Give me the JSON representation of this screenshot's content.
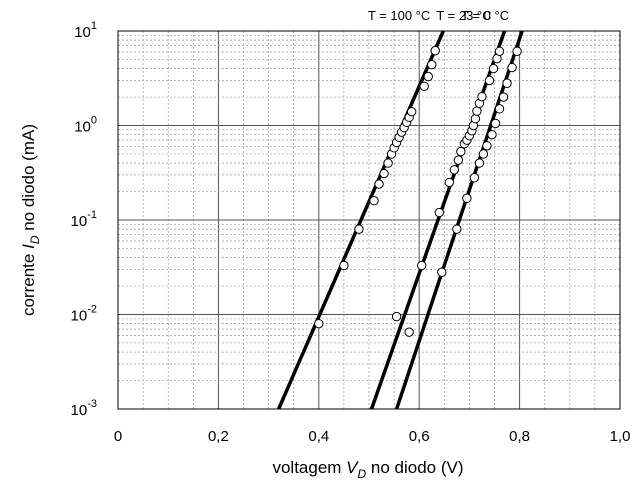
{
  "chart_data": {
    "type": "scatter",
    "xlabel": {
      "prefix": "voltagem ",
      "symbol": "V",
      "subscript": "D",
      "suffix": " no diodo (V)"
    },
    "ylabel": {
      "prefix": "corrente ",
      "symbol": "I",
      "subscript": "D",
      "suffix": "  no diodo (mA)"
    },
    "x_ticks": [
      {
        "value": 0,
        "label": "0"
      },
      {
        "value": 0.2,
        "label": "0,2"
      },
      {
        "value": 0.4,
        "label": "0,4"
      },
      {
        "value": 0.6,
        "label": "0,6"
      },
      {
        "value": 0.8,
        "label": "0,8"
      },
      {
        "value": 1.0,
        "label": "1,0"
      }
    ],
    "y_ticks": [
      {
        "exp": -3,
        "base": "10",
        "label": "-3"
      },
      {
        "exp": -2,
        "base": "10",
        "label": "-2"
      },
      {
        "exp": -1,
        "base": "10",
        "label": "-1"
      },
      {
        "exp": 0,
        "base": "10",
        "label": "0"
      },
      {
        "exp": 1,
        "base": "10",
        "label": "1"
      }
    ],
    "xlim": [
      0,
      1.0
    ],
    "ylim": [
      0.001,
      10
    ],
    "y_scale": "log",
    "grid": true,
    "series": [
      {
        "name": "T = 100 °C",
        "line": [
          [
            0.32,
            0.001
          ],
          [
            0.648,
            10
          ]
        ],
        "points": [
          [
            0.4,
            0.008
          ],
          [
            0.45,
            0.033
          ],
          [
            0.48,
            0.08
          ],
          [
            0.51,
            0.16
          ],
          [
            0.52,
            0.24
          ],
          [
            0.53,
            0.31
          ],
          [
            0.538,
            0.4
          ],
          [
            0.545,
            0.5
          ],
          [
            0.55,
            0.58
          ],
          [
            0.555,
            0.66
          ],
          [
            0.56,
            0.75
          ],
          [
            0.565,
            0.85
          ],
          [
            0.57,
            0.95
          ],
          [
            0.575,
            1.08
          ],
          [
            0.58,
            1.22
          ],
          [
            0.585,
            1.4
          ],
          [
            0.61,
            2.6
          ],
          [
            0.618,
            3.3
          ],
          [
            0.625,
            4.4
          ],
          [
            0.632,
            6.2
          ]
        ]
      },
      {
        "name": "T = 23 °C",
        "line": [
          [
            0.505,
            0.001
          ],
          [
            0.77,
            10
          ]
        ],
        "points": [
          [
            0.555,
            0.0095
          ],
          [
            0.58,
            0.0065
          ],
          [
            0.605,
            0.033
          ],
          [
            0.64,
            0.12
          ],
          [
            0.66,
            0.25
          ],
          [
            0.67,
            0.34
          ],
          [
            0.678,
            0.43
          ],
          [
            0.683,
            0.53
          ],
          [
            0.69,
            0.64
          ],
          [
            0.695,
            0.7
          ],
          [
            0.7,
            0.78
          ],
          [
            0.705,
            0.88
          ],
          [
            0.708,
            1.0
          ],
          [
            0.712,
            1.18
          ],
          [
            0.715,
            1.42
          ],
          [
            0.72,
            1.72
          ],
          [
            0.725,
            2.02
          ],
          [
            0.74,
            3.0
          ],
          [
            0.748,
            4.0
          ],
          [
            0.755,
            5.1
          ],
          [
            0.76,
            6.1
          ]
        ]
      },
      {
        "name": "T = 0 °C",
        "line": [
          [
            0.555,
            0.001
          ],
          [
            0.805,
            10
          ]
        ],
        "points": [
          [
            0.645,
            0.028
          ],
          [
            0.675,
            0.08
          ],
          [
            0.695,
            0.17
          ],
          [
            0.71,
            0.28
          ],
          [
            0.72,
            0.4
          ],
          [
            0.728,
            0.5
          ],
          [
            0.735,
            0.61
          ],
          [
            0.745,
            0.8
          ],
          [
            0.752,
            1.05
          ],
          [
            0.76,
            1.5
          ],
          [
            0.768,
            2.0
          ],
          [
            0.775,
            2.8
          ],
          [
            0.785,
            4.1
          ],
          [
            0.795,
            6.1
          ]
        ]
      }
    ]
  }
}
